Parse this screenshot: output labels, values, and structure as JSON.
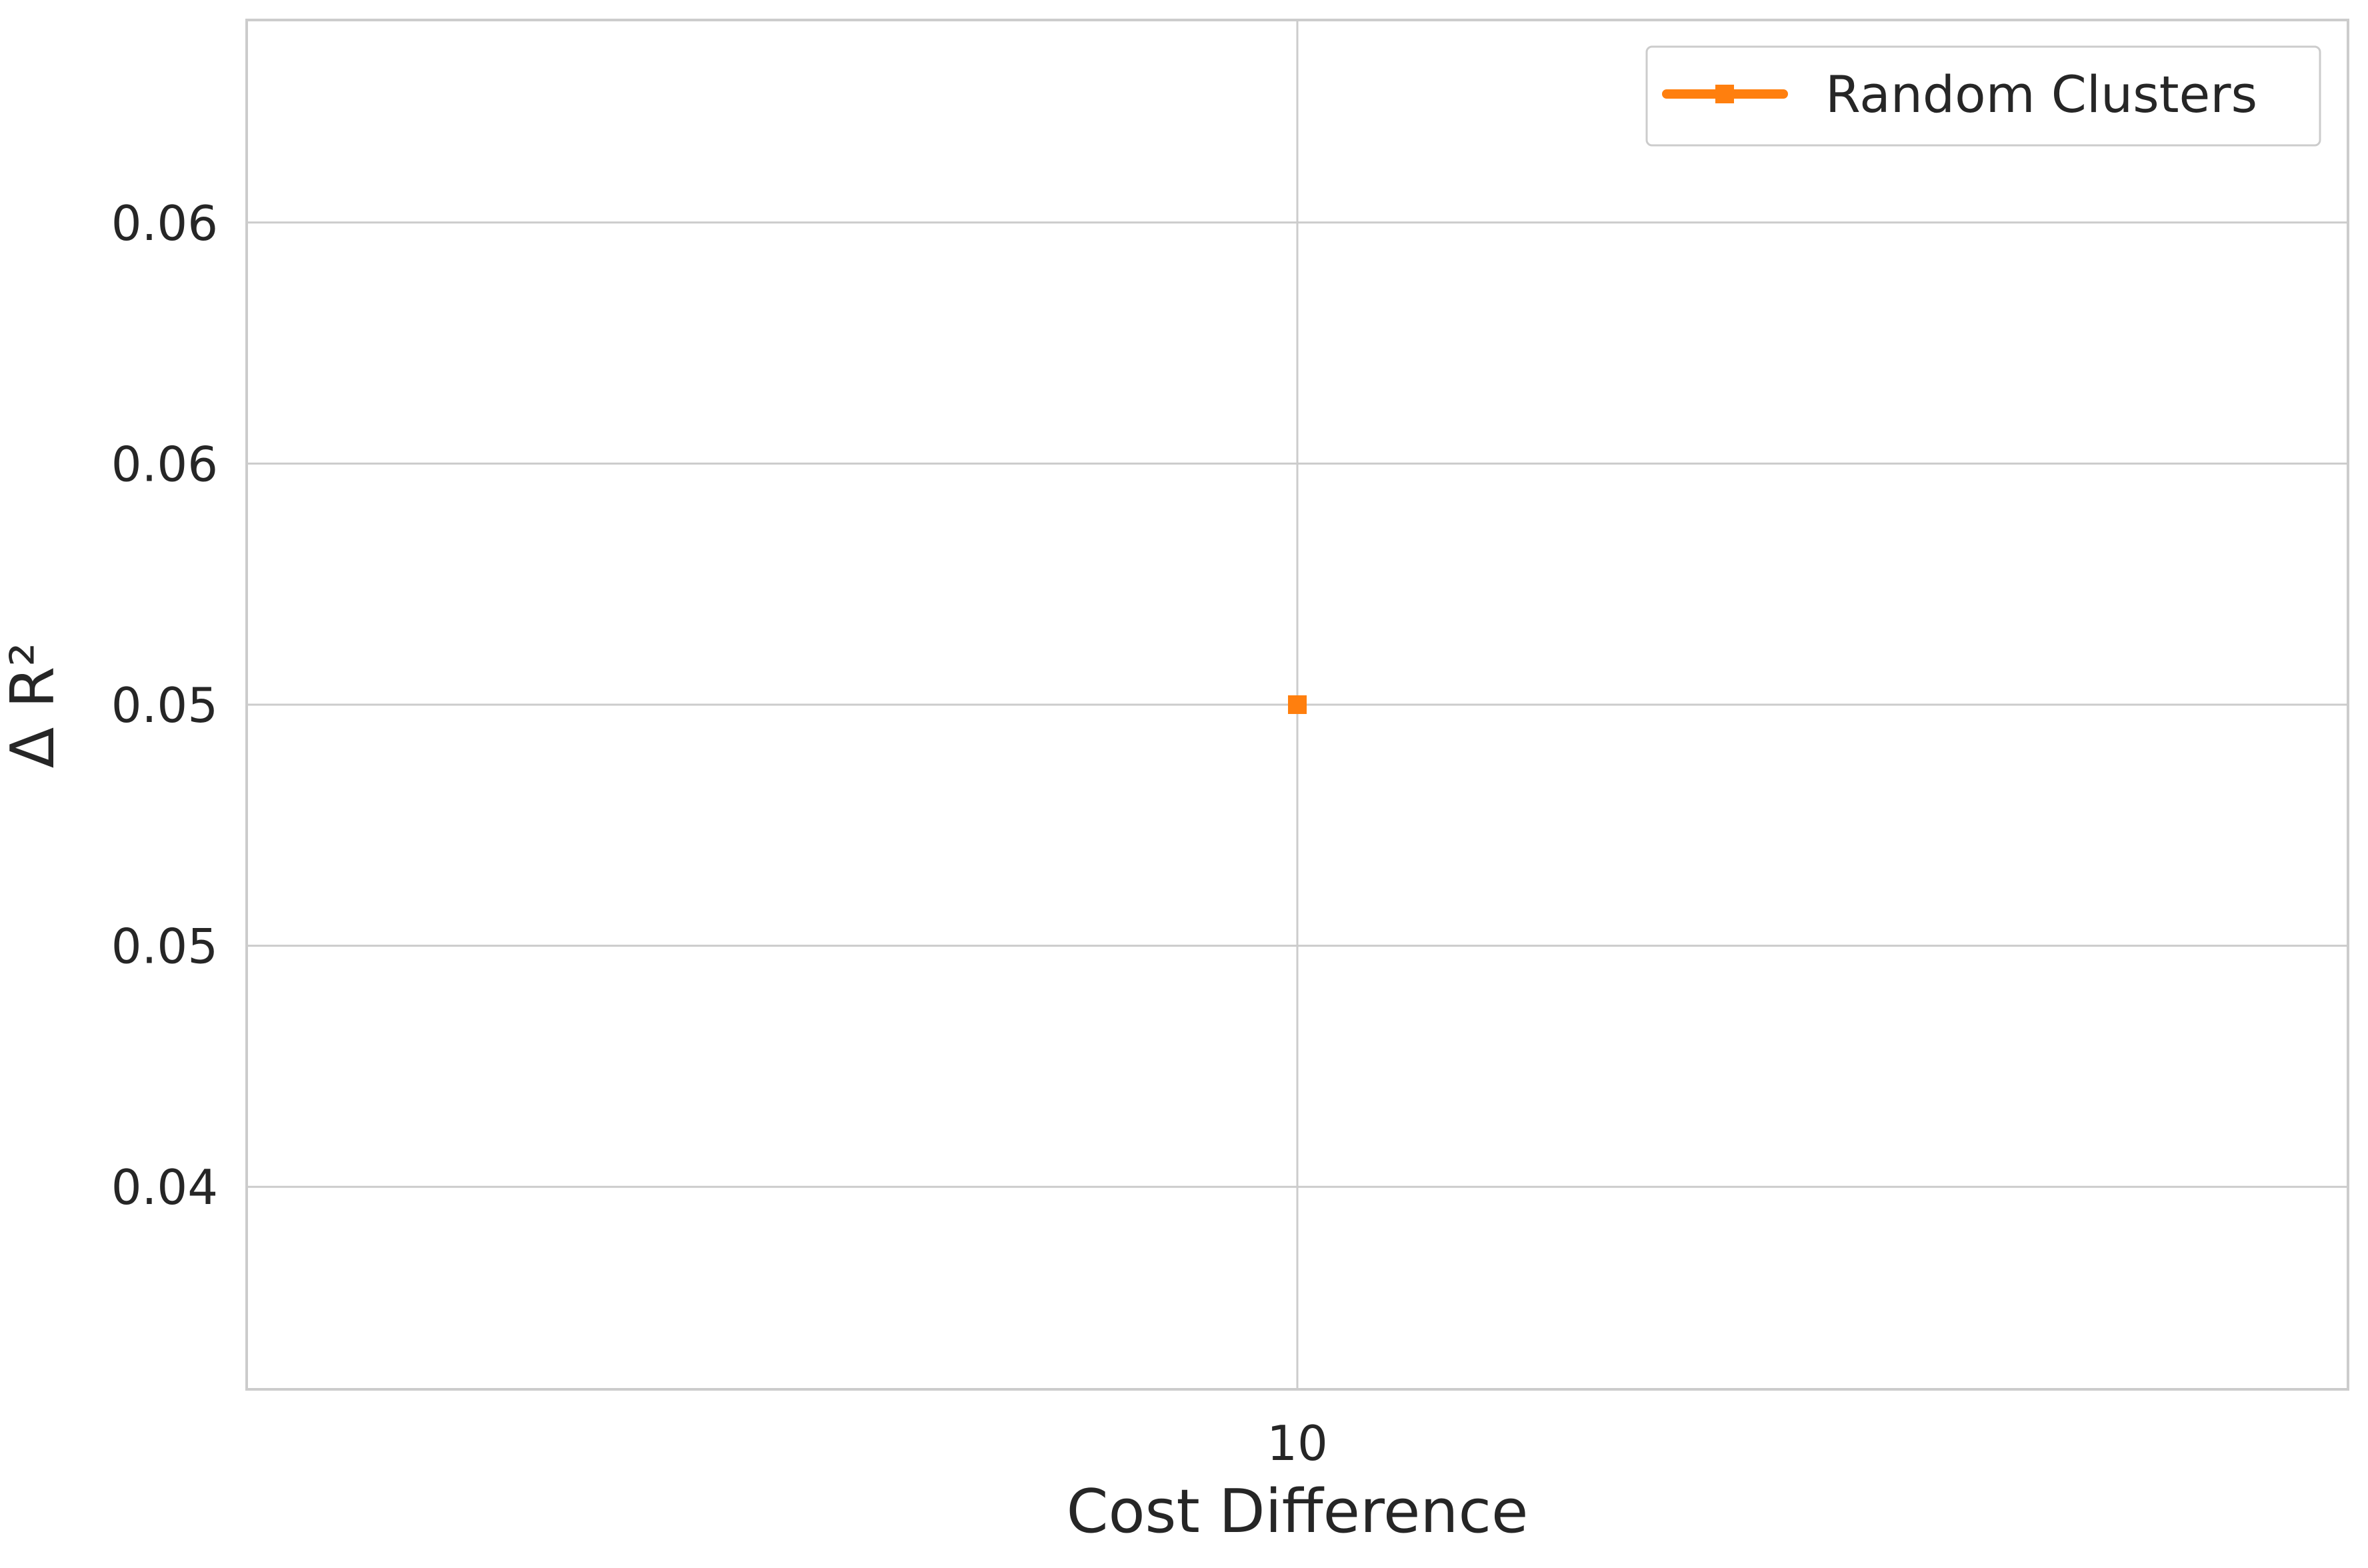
{
  "chart_data": {
    "type": "line",
    "x": [
      10
    ],
    "series": [
      {
        "name": "Random Clusters",
        "values": [
          0.05
        ],
        "color": "#ff7f0e",
        "marker": "square"
      }
    ],
    "xlabel": "Cost Difference",
    "ylabel": "Δ R²",
    "x_ticks": [
      "10"
    ],
    "y_ticks": [
      {
        "value": 0.04,
        "label": "0.04"
      },
      {
        "value": 0.045,
        "label": "0.05"
      },
      {
        "value": 0.05,
        "label": "0.05"
      },
      {
        "value": 0.055,
        "label": "0.06"
      },
      {
        "value": 0.06,
        "label": "0.06"
      }
    ],
    "ylim": [
      0.0358,
      0.0642
    ],
    "grid": true,
    "legend_position": "top-right",
    "colors": {
      "axis": "#cccccc",
      "grid": "#cccccc",
      "text": "#262626"
    }
  }
}
